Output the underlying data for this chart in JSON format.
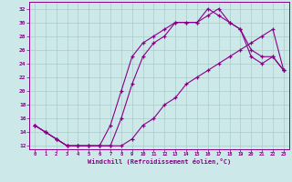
{
  "xlabel": "Windchill (Refroidissement éolien,°C)",
  "bg_color": "#cce8e8",
  "line_color": "#880088",
  "grid_color": "#aacccc",
  "xlim": [
    -0.5,
    23.5
  ],
  "ylim": [
    11.5,
    33
  ],
  "xticks": [
    0,
    1,
    2,
    3,
    4,
    5,
    6,
    7,
    8,
    9,
    10,
    11,
    12,
    13,
    14,
    15,
    16,
    17,
    18,
    19,
    20,
    21,
    22,
    23
  ],
  "yticks": [
    12,
    14,
    16,
    18,
    20,
    22,
    24,
    26,
    28,
    30,
    32
  ],
  "curve1_x": [
    0,
    1,
    2,
    3,
    4,
    5,
    6,
    7,
    8,
    9,
    10,
    11,
    12,
    13,
    14,
    15,
    16,
    17,
    18,
    19,
    20,
    21,
    22,
    23
  ],
  "curve1_y": [
    15,
    14,
    13,
    12,
    12,
    12,
    12,
    12,
    16,
    21,
    25,
    27,
    28,
    30,
    30,
    30,
    32,
    31,
    30,
    29,
    25,
    24,
    25,
    23
  ],
  "curve2_x": [
    0,
    1,
    2,
    3,
    4,
    5,
    6,
    7,
    8,
    9,
    10,
    11,
    12,
    13,
    14,
    15,
    16,
    17,
    18,
    19,
    20,
    21,
    22,
    23
  ],
  "curve2_y": [
    15,
    14,
    13,
    12,
    12,
    12,
    12,
    15,
    20,
    25,
    27,
    28,
    29,
    30,
    30,
    30,
    31,
    32,
    30,
    29,
    26,
    25,
    25,
    23
  ],
  "curve3_x": [
    0,
    1,
    2,
    3,
    4,
    5,
    6,
    7,
    8,
    9,
    10,
    11,
    12,
    13,
    14,
    15,
    16,
    17,
    18,
    19,
    20,
    21,
    22,
    23
  ],
  "curve3_y": [
    15,
    14,
    13,
    12,
    12,
    12,
    12,
    12,
    12,
    13,
    15,
    16,
    18,
    19,
    21,
    22,
    23,
    24,
    25,
    26,
    27,
    28,
    29,
    23
  ]
}
